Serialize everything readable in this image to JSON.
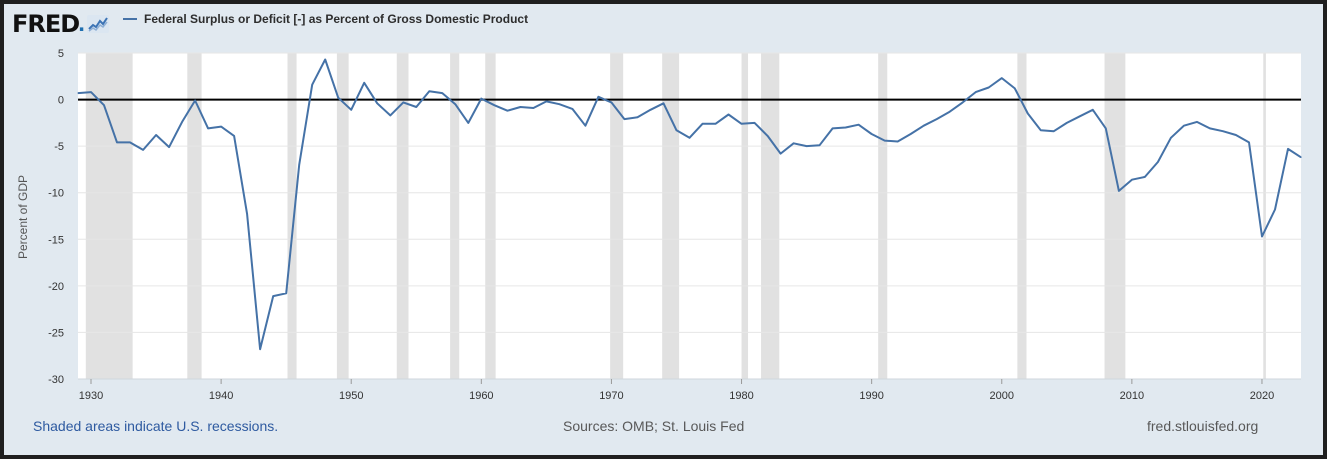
{
  "brand": {
    "word": "FRED",
    "dot": "."
  },
  "legend": {
    "label": "Federal Surplus or Deficit [-] as Percent of Gross Domestic Product"
  },
  "footer": {
    "note": "Shaded areas indicate U.S. recessions.",
    "sources": "Sources: OMB; St. Louis Fed",
    "site": "fred.stlouisfed.org"
  },
  "colors": {
    "series": "#4572a7",
    "recession": "#e1e1e1",
    "zero_line": "#000000",
    "frame_bg": "#e1e9f0",
    "brand_accent": "#1f6fb0"
  },
  "chart_data": {
    "type": "line",
    "title": "",
    "xlabel": "",
    "ylabel": "Percent of GDP",
    "xlim": [
      1929,
      2023
    ],
    "ylim": [
      -30,
      5
    ],
    "x_ticks": [
      1930,
      1940,
      1950,
      1960,
      1970,
      1980,
      1990,
      2000,
      2010,
      2020
    ],
    "y_ticks": [
      5,
      0,
      -5,
      -10,
      -15,
      -20,
      -25,
      -30
    ],
    "grid": "horizontal",
    "reference_line": 0,
    "recessions": [
      [
        1929.6,
        1933.2
      ],
      [
        1937.4,
        1938.5
      ],
      [
        1945.1,
        1945.8
      ],
      [
        1948.9,
        1949.8
      ],
      [
        1953.5,
        1954.4
      ],
      [
        1957.6,
        1958.3
      ],
      [
        1960.3,
        1961.1
      ],
      [
        1969.9,
        1970.9
      ],
      [
        1973.9,
        1975.2
      ],
      [
        1980.0,
        1980.5
      ],
      [
        1981.5,
        1982.9
      ],
      [
        1990.5,
        1991.2
      ],
      [
        2001.2,
        2001.9
      ],
      [
        2007.9,
        2009.5
      ],
      [
        2020.1,
        2020.3
      ]
    ],
    "series": [
      {
        "name": "Federal Surplus or Deficit [-] as Percent of Gross Domestic Product",
        "x": [
          1929,
          1930,
          1931,
          1932,
          1933,
          1934,
          1935,
          1936,
          1937,
          1938,
          1939,
          1940,
          1941,
          1942,
          1943,
          1944,
          1945,
          1946,
          1947,
          1948,
          1949,
          1950,
          1951,
          1952,
          1953,
          1954,
          1955,
          1956,
          1957,
          1958,
          1959,
          1960,
          1961,
          1962,
          1963,
          1964,
          1965,
          1966,
          1967,
          1968,
          1969,
          1970,
          1971,
          1972,
          1973,
          1974,
          1975,
          1976,
          1977,
          1978,
          1979,
          1980,
          1981,
          1982,
          1983,
          1984,
          1985,
          1986,
          1987,
          1988,
          1989,
          1990,
          1991,
          1992,
          1993,
          1994,
          1995,
          1996,
          1997,
          1998,
          1999,
          2000,
          2001,
          2002,
          2003,
          2004,
          2005,
          2006,
          2007,
          2008,
          2009,
          2010,
          2011,
          2012,
          2013,
          2014,
          2015,
          2016,
          2017,
          2018,
          2019,
          2020,
          2021,
          2022,
          2023
        ],
        "values": [
          0.7,
          0.8,
          -0.6,
          -4.6,
          -4.6,
          -5.4,
          -3.8,
          -5.1,
          -2.4,
          -0.1,
          -3.1,
          -2.9,
          -3.9,
          -12.3,
          -26.8,
          -21.1,
          -20.8,
          -7.0,
          1.6,
          4.3,
          0.2,
          -1.1,
          1.8,
          -0.4,
          -1.7,
          -0.3,
          -0.8,
          0.9,
          0.7,
          -0.5,
          -2.5,
          0.1,
          -0.6,
          -1.2,
          -0.8,
          -0.9,
          -0.2,
          -0.5,
          -1.0,
          -2.8,
          0.3,
          -0.3,
          -2.1,
          -1.9,
          -1.1,
          -0.4,
          -3.3,
          -4.1,
          -2.6,
          -2.6,
          -1.6,
          -2.6,
          -2.5,
          -3.9,
          -5.8,
          -4.7,
          -5.0,
          -4.9,
          -3.1,
          -3.0,
          -2.7,
          -3.7,
          -4.4,
          -4.5,
          -3.7,
          -2.8,
          -2.1,
          -1.3,
          -0.3,
          0.8,
          1.3,
          2.3,
          1.2,
          -1.5,
          -3.3,
          -3.4,
          -2.5,
          -1.8,
          -1.1,
          -3.1,
          -9.8,
          -8.6,
          -8.3,
          -6.7,
          -4.1,
          -2.8,
          -2.4,
          -3.1,
          -3.4,
          -3.8,
          -4.6,
          -14.7,
          -11.8,
          -5.3,
          -6.2
        ]
      }
    ]
  }
}
